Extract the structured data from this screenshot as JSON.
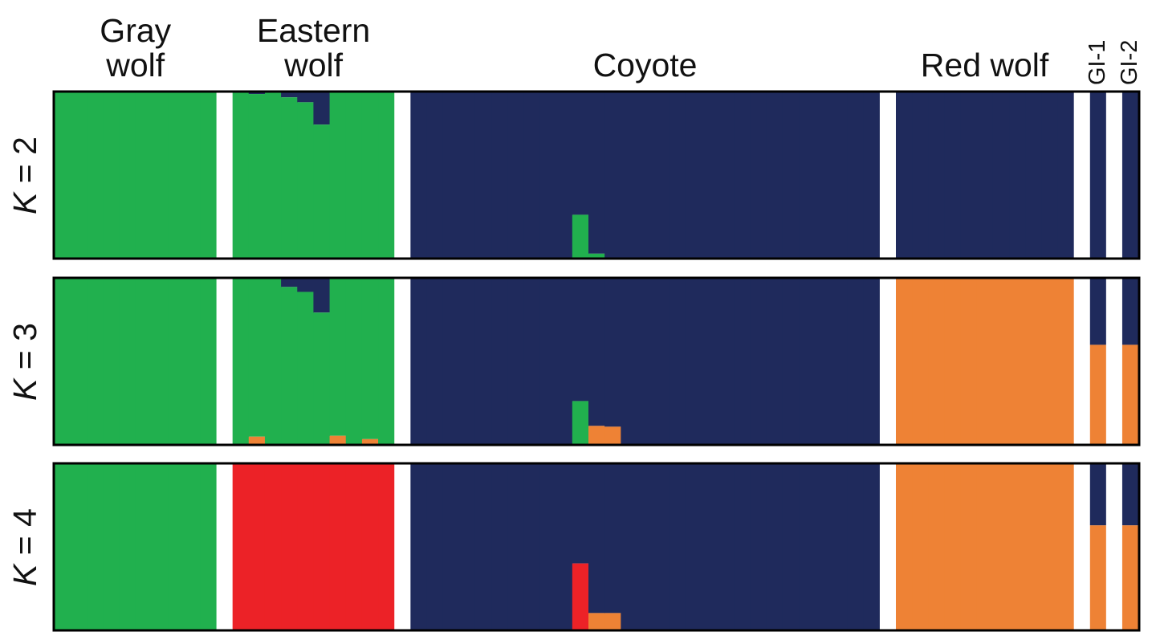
{
  "chart_data": {
    "type": "bar",
    "stacked": true,
    "normalized": true,
    "description_of_layout": "structure admixture plot",
    "groups": [
      {
        "label": "Gray\nwolf",
        "n": 10
      },
      {
        "label": "Eastern\nwolf",
        "n": 10
      },
      {
        "label": "Coyote",
        "n": 29
      },
      {
        "label": "Red wolf",
        "n": 11
      },
      {
        "label": "GI-1",
        "n": 1
      },
      {
        "label": "GI-2",
        "n": 1
      }
    ],
    "colors": {
      "green": "#21b04e",
      "navy": "#1f2a5c",
      "orange": "#ee8235",
      "red": "#ec2227"
    },
    "panels": [
      {
        "k_prefix": "K",
        "k_text": " = 2",
        "groups": [
          {
            "uniform": {
              "green": 1.0
            }
          },
          {
            "uniform": {
              "green": 1.0
            },
            "exceptions": [
              {
                "i": 1,
                "q": {
                  "navy": 0.01,
                  "green": 0.99
                }
              },
              {
                "i": 3,
                "q": {
                  "navy": 0.03,
                  "green": 0.97
                }
              },
              {
                "i": 4,
                "q": {
                  "navy": 0.06,
                  "green": 0.94
                }
              },
              {
                "i": 5,
                "q": {
                  "navy": 0.195,
                  "green": 0.805
                }
              }
            ]
          },
          {
            "uniform": {
              "navy": 1.0
            },
            "exceptions": [
              {
                "i": 10,
                "q": {
                  "navy": 0.74,
                  "green": 0.26
                }
              },
              {
                "i": 11,
                "q": {
                  "navy": 0.975,
                  "green": 0.025
                }
              }
            ]
          },
          {
            "uniform": {
              "navy": 1.0
            }
          },
          {
            "uniform": {
              "navy": 1.0
            }
          },
          {
            "uniform": {
              "navy": 1.0
            }
          }
        ]
      },
      {
        "k_prefix": "K",
        "k_text": " = 3",
        "groups": [
          {
            "uniform": {
              "green": 1.0
            }
          },
          {
            "uniform": {
              "green": 1.0
            },
            "exceptions": [
              {
                "i": 1,
                "q": {
                  "green": 0.955,
                  "orange": 0.045
                }
              },
              {
                "i": 3,
                "q": {
                  "navy": 0.05,
                  "green": 0.95
                }
              },
              {
                "i": 4,
                "q": {
                  "navy": 0.08,
                  "green": 0.92
                }
              },
              {
                "i": 5,
                "q": {
                  "navy": 0.205,
                  "green": 0.795
                }
              },
              {
                "i": 6,
                "q": {
                  "green": 0.95,
                  "orange": 0.05
                }
              },
              {
                "i": 8,
                "q": {
                  "green": 0.97,
                  "orange": 0.03
                }
              }
            ]
          },
          {
            "uniform": {
              "navy": 1.0
            },
            "exceptions": [
              {
                "i": 10,
                "q": {
                  "navy": 0.74,
                  "green": 0.26
                }
              },
              {
                "i": 11,
                "q": {
                  "navy": 0.89,
                  "orange": 0.11
                }
              },
              {
                "i": 12,
                "q": {
                  "navy": 0.895,
                  "orange": 0.105
                }
              }
            ]
          },
          {
            "uniform": {
              "orange": 1.0
            }
          },
          {
            "uniform": {
              "navy": 0.4,
              "orange": 0.6
            }
          },
          {
            "uniform": {
              "navy": 0.4,
              "orange": 0.6
            }
          }
        ]
      },
      {
        "k_prefix": "K",
        "k_text": " = 4",
        "groups": [
          {
            "uniform": {
              "green": 1.0
            }
          },
          {
            "uniform": {
              "red": 1.0
            }
          },
          {
            "uniform": {
              "navy": 1.0
            },
            "exceptions": [
              {
                "i": 10,
                "q": {
                  "navy": 0.6,
                  "red": 0.4
                }
              },
              {
                "i": 11,
                "q": {
                  "navy": 0.9,
                  "orange": 0.1
                }
              },
              {
                "i": 12,
                "q": {
                  "navy": 0.9,
                  "orange": 0.1
                }
              }
            ]
          },
          {
            "uniform": {
              "orange": 1.0
            }
          },
          {
            "uniform": {
              "navy": 0.37,
              "orange": 0.63
            }
          },
          {
            "uniform": {
              "navy": 0.37,
              "orange": 0.63
            }
          }
        ]
      }
    ],
    "cluster_draw_order": [
      "navy",
      "green",
      "red",
      "orange"
    ]
  }
}
